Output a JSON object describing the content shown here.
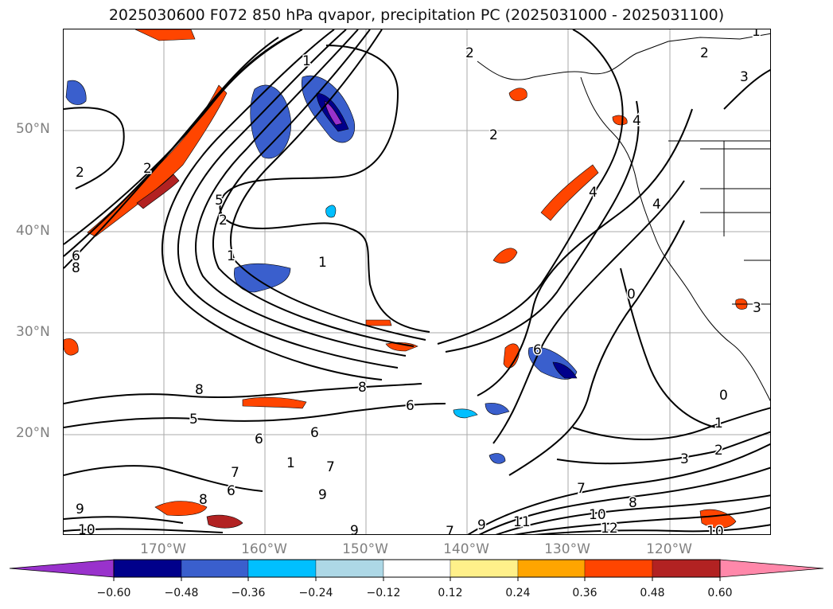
{
  "title": "2025030600 F072 850 hPa qvapor, precipitation PC (2025031000 - 2025031100)",
  "lat_labels": [
    "50°N",
    "40°N",
    "30°N",
    "20°N"
  ],
  "lon_labels": [
    "170°W",
    "160°W",
    "150°W",
    "140°W",
    "130°W",
    "120°W"
  ],
  "colorbar": {
    "ticks": [
      "−0.60",
      "−0.48",
      "−0.36",
      "−0.24",
      "−0.12",
      "0.12",
      "0.24",
      "0.36",
      "0.48",
      "0.60"
    ],
    "colors": [
      "#9932cc",
      "#00008b",
      "#3a5fcd",
      "#00bfff",
      "#add8e6",
      "#ffffff",
      "#fff08a",
      "#ffa500",
      "#ff4500",
      "#b22222",
      "#ff88aa"
    ]
  },
  "contour_labels": [
    "1",
    "2",
    "3",
    "2",
    "2",
    "2",
    "1",
    "1",
    "2",
    "4",
    "5",
    "4",
    "4",
    "2",
    "1",
    "6",
    "8",
    "6",
    "8",
    "5",
    "8",
    "6",
    "9",
    "6",
    "1",
    "6",
    "8",
    "6",
    "7",
    "7",
    "9",
    "10",
    "9",
    "7",
    "9",
    "11",
    "10",
    "12",
    "8",
    "7",
    "3",
    "2",
    "1",
    "0",
    "0",
    "3",
    "10"
  ]
}
